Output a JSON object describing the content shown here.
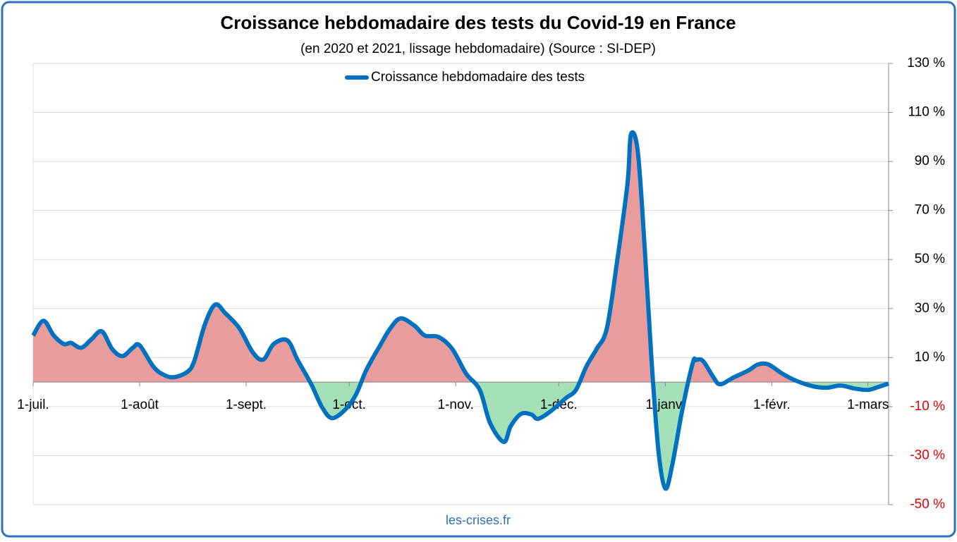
{
  "chart_data": {
    "type": "line",
    "title": "Croissance hebdomadaire des tests du Covid-19 en France",
    "subtitle": "(en 2020 et 2021, lissage hebdomadaire) (Source : SI-DEP)",
    "source": "les-crises.fr",
    "x": [
      0,
      3,
      6,
      9,
      11,
      14,
      17,
      20,
      23,
      26,
      29,
      31,
      35,
      38,
      41,
      45,
      47,
      50,
      53,
      56,
      60,
      64,
      67,
      70,
      74,
      77,
      81,
      84,
      87,
      91,
      94,
      97,
      101,
      104,
      107,
      111,
      114,
      118,
      122,
      126,
      130,
      133,
      137,
      139,
      142,
      145,
      147,
      151,
      155,
      158,
      161,
      164,
      167,
      170,
      173,
      174,
      176,
      178,
      180,
      182,
      184,
      186,
      189,
      192,
      193,
      195,
      198,
      200,
      204,
      208,
      211,
      214,
      218,
      222,
      227,
      231,
      235,
      239,
      243,
      246,
      249
    ],
    "series": [
      {
        "name": "Croissance hebdomadaire des tests",
        "color": "#0070c0",
        "values": [
          19,
          25,
          19,
          15.5,
          16,
          14,
          17.5,
          20.7,
          13.5,
          10.6,
          14,
          15,
          6.3,
          3,
          2,
          4.3,
          9,
          23.6,
          31.6,
          28,
          22,
          12,
          9.2,
          15.5,
          17,
          9,
          -1,
          -10,
          -14.7,
          -11,
          -5,
          5,
          15,
          22,
          26,
          23,
          19,
          18.4,
          13.5,
          3.5,
          -3.2,
          -16.7,
          -24.4,
          -18,
          -13,
          -13.2,
          -15,
          -11.5,
          -6.6,
          -3.2,
          6.3,
          13.5,
          22,
          49.5,
          81,
          101,
          94,
          55,
          9,
          -28,
          -43.4,
          -34,
          -11,
          7.8,
          9,
          8.6,
          2,
          -0.9,
          2,
          4.6,
          7.2,
          7.2,
          3.5,
          0.6,
          -1.7,
          -2.3,
          -1.4,
          -2.6,
          -3.2,
          -2,
          -0.6
        ]
      }
    ],
    "positive_fill": "#e89c9c",
    "negative_fill": "#a3e0b8",
    "negative_tick_color": "#e00000",
    "xlim": [
      0,
      249
    ],
    "xticks": [
      {
        "value": 0,
        "label": "1-juil."
      },
      {
        "value": 31,
        "label": "1-août"
      },
      {
        "value": 62,
        "label": "1-sept."
      },
      {
        "value": 92,
        "label": "1-oct."
      },
      {
        "value": 123,
        "label": "1-nov."
      },
      {
        "value": 153,
        "label": "1-déc."
      },
      {
        "value": 184,
        "label": "1-janv."
      },
      {
        "value": 215,
        "label": "1-févr."
      },
      {
        "value": 243,
        "label": "1-mars"
      }
    ],
    "ylim": [
      -50,
      130
    ],
    "yticks": [
      {
        "value": 130,
        "label": "130 %"
      },
      {
        "value": 110,
        "label": "110 %"
      },
      {
        "value": 90,
        "label": "90 %"
      },
      {
        "value": 70,
        "label": "70 %"
      },
      {
        "value": 50,
        "label": "50 %"
      },
      {
        "value": 30,
        "label": "30 %"
      },
      {
        "value": 10,
        "label": "10 %"
      },
      {
        "value": -10,
        "label": "-10 %"
      },
      {
        "value": -30,
        "label": "-30 %"
      },
      {
        "value": -50,
        "label": "-50 %"
      }
    ],
    "grid": true,
    "legend": "top"
  }
}
